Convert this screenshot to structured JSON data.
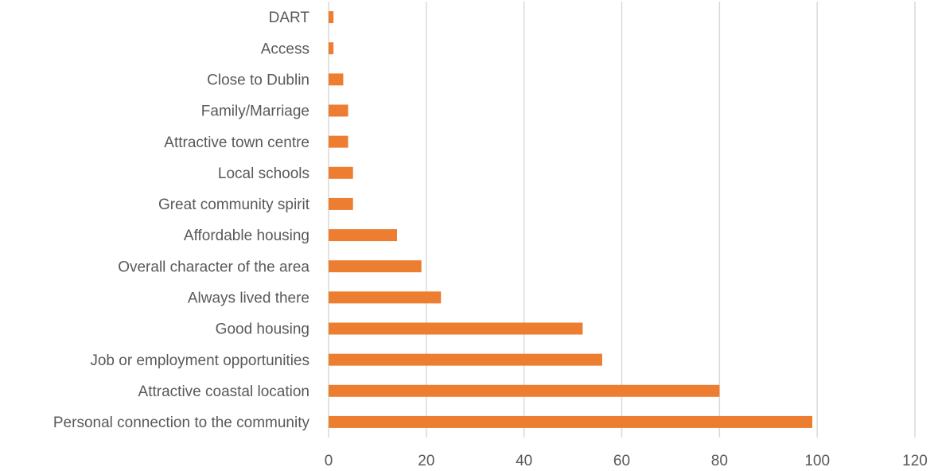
{
  "chart_data": {
    "type": "bar",
    "orientation": "horizontal",
    "title": "",
    "xlabel": "",
    "ylabel": "",
    "categories": [
      "Personal connection to the community",
      "Attractive coastal location",
      "Job or employment opportunities",
      "Good housing",
      "Always lived there",
      "Overall character of the area",
      "Affordable housing",
      "Great community spirit",
      "Local schools",
      "Attractive town centre",
      "Family/Marriage",
      "Close to Dublin",
      "Access",
      "DART"
    ],
    "values": [
      99,
      80,
      56,
      52,
      23,
      19,
      14,
      5,
      5,
      4,
      4,
      3,
      1,
      1
    ],
    "xlim": [
      0,
      120
    ],
    "xticks": [
      "0",
      "20",
      "40",
      "60",
      "80",
      "100",
      "120"
    ],
    "grid": true,
    "legend": "none",
    "bar_color": "#ED7D31"
  }
}
